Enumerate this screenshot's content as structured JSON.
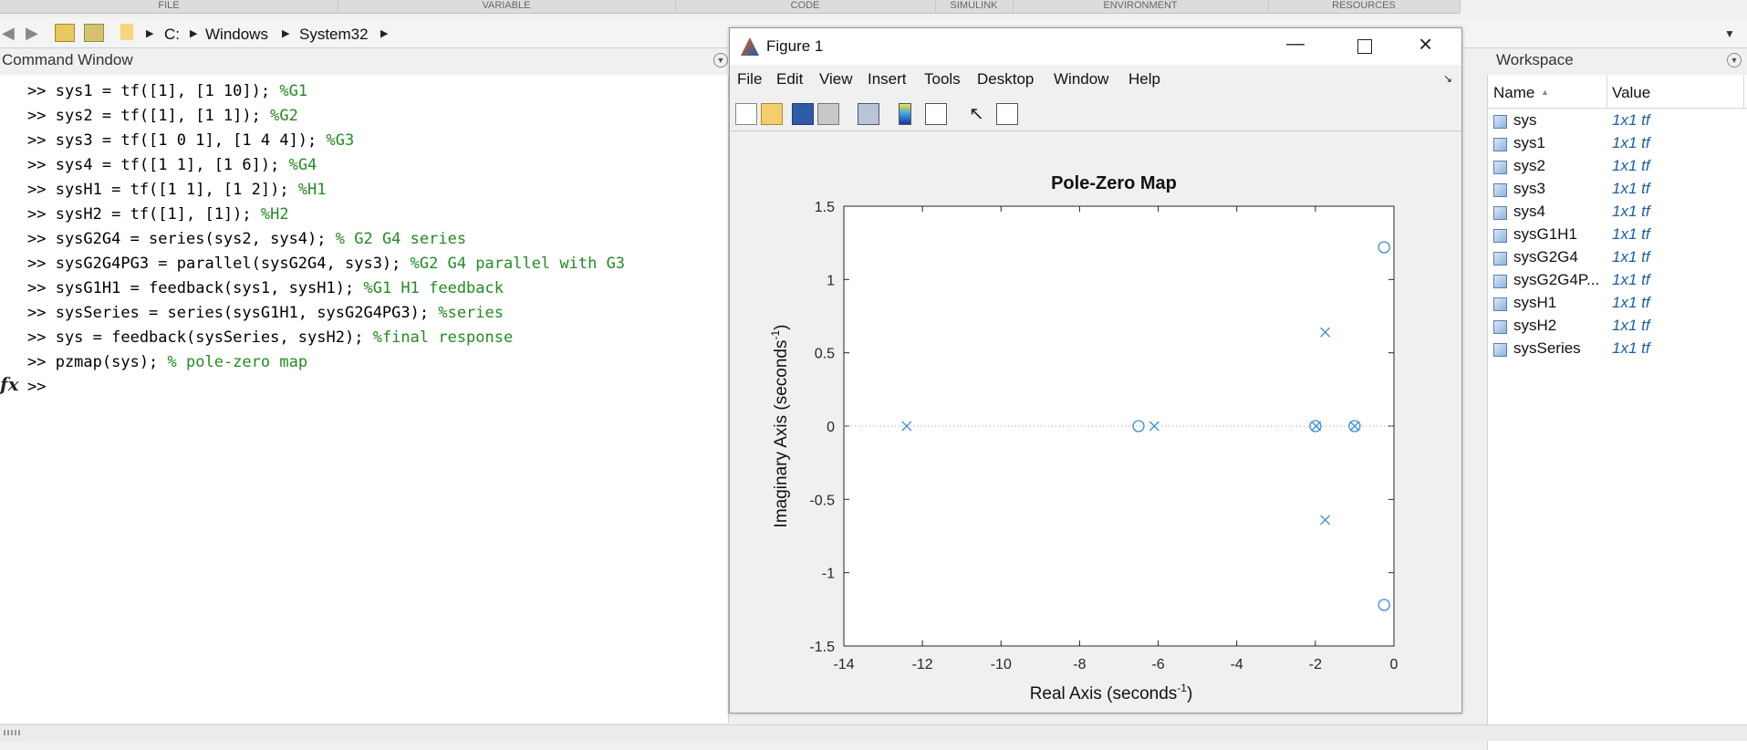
{
  "ribbon": {
    "tabs": [
      "FILE",
      "VARIABLE",
      "CODE",
      "SIMULINK",
      "ENVIRONMENT",
      "RESOURCES"
    ]
  },
  "address": {
    "crumbs": [
      "C:",
      "Windows",
      "System32"
    ]
  },
  "command_window": {
    "title": "Command Window",
    "lines": [
      {
        "code": ">> sys1 = tf([1], [1 10]); ",
        "comment": "%G1"
      },
      {
        "code": ">> sys2 = tf([1], [1 1]); ",
        "comment": "%G2"
      },
      {
        "code": ">> sys3 = tf([1 0 1], [1 4 4]); ",
        "comment": "%G3"
      },
      {
        "code": ">> sys4 = tf([1 1], [1 6]); ",
        "comment": "%G4"
      },
      {
        "code": ">> sysH1 = tf([1 1], [1 2]); ",
        "comment": "%H1"
      },
      {
        "code": ">> sysH2 = tf([1], [1]); ",
        "comment": "%H2"
      },
      {
        "code": ">> sysG2G4 = series(sys2, sys4); ",
        "comment": "% G2 G4 series"
      },
      {
        "code": ">> sysG2G4PG3 = parallel(sysG2G4, sys3); ",
        "comment": "%G2 G4 parallel with G3"
      },
      {
        "code": ">> sysG1H1 = feedback(sys1, sysH1); ",
        "comment": "%G1 H1 feedback"
      },
      {
        "code": ">> sysSeries = series(sysG1H1, sysG2G4PG3); ",
        "comment": "%series"
      },
      {
        "code": ">> sys = feedback(sysSeries, sysH2); ",
        "comment": "%final response"
      },
      {
        "code": ">> pzmap(sys); ",
        "comment": "% pole-zero map"
      }
    ],
    "prompt": ">>",
    "fx_label": "fx"
  },
  "figure": {
    "title": "Figure 1",
    "menu": [
      "File",
      "Edit",
      "View",
      "Insert",
      "Tools",
      "Desktop",
      "Window",
      "Help"
    ],
    "toolbar_icons": [
      "new-figure-icon",
      "open-icon",
      "save-icon",
      "print-icon",
      "link-icon",
      "colorbar-icon",
      "legend-icon",
      "pointer-icon",
      "property-inspector-icon"
    ]
  },
  "workspace": {
    "title": "Workspace",
    "columns": [
      "Name",
      "Value"
    ],
    "rows": [
      {
        "name": "sys",
        "value": "1x1 tf"
      },
      {
        "name": "sys1",
        "value": "1x1 tf"
      },
      {
        "name": "sys2",
        "value": "1x1 tf"
      },
      {
        "name": "sys3",
        "value": "1x1 tf"
      },
      {
        "name": "sys4",
        "value": "1x1 tf"
      },
      {
        "name": "sysG1H1",
        "value": "1x1 tf"
      },
      {
        "name": "sysG2G4",
        "value": "1x1 tf"
      },
      {
        "name": "sysG2G4P...",
        "value": "1x1 tf"
      },
      {
        "name": "sysH1",
        "value": "1x1 tf"
      },
      {
        "name": "sysH2",
        "value": "1x1 tf"
      },
      {
        "name": "sysSeries",
        "value": "1x1 tf"
      }
    ]
  },
  "chart_data": {
    "type": "scatter",
    "title": "Pole-Zero Map",
    "xlabel": "Real Axis (seconds",
    "ylabel": "Imaginary Axis (seconds",
    "axis_unit_superscript": "-1",
    "xlim": [
      -14,
      0
    ],
    "ylim": [
      -1.5,
      1.5
    ],
    "xticks": [
      -14,
      -12,
      -10,
      -8,
      -6,
      -4,
      -2,
      0
    ],
    "yticks": [
      -1.5,
      -1,
      -0.5,
      0,
      0.5,
      1,
      1.5
    ],
    "xtick_labels": [
      "-14",
      "-12",
      "-10",
      "-8",
      "-6",
      "-4",
      "-2",
      "0"
    ],
    "ytick_labels": [
      "-1.5",
      "-1",
      "-0.5",
      "0",
      "0.5",
      "1",
      "1.5"
    ],
    "color": "#3a8ed0",
    "series": [
      {
        "marker": "x",
        "points": [
          [
            -12.4,
            0
          ],
          [
            -6.1,
            0
          ],
          [
            -1.75,
            0.64
          ],
          [
            -1.75,
            -0.64
          ],
          [
            -1.98,
            0
          ],
          [
            -1.0,
            0
          ]
        ]
      },
      {
        "marker": "o",
        "points": [
          [
            -6.5,
            0
          ],
          [
            -0.25,
            1.22
          ],
          [
            -0.25,
            -1.22
          ],
          [
            -2.0,
            0
          ],
          [
            -1.0,
            0
          ]
        ]
      }
    ]
  }
}
